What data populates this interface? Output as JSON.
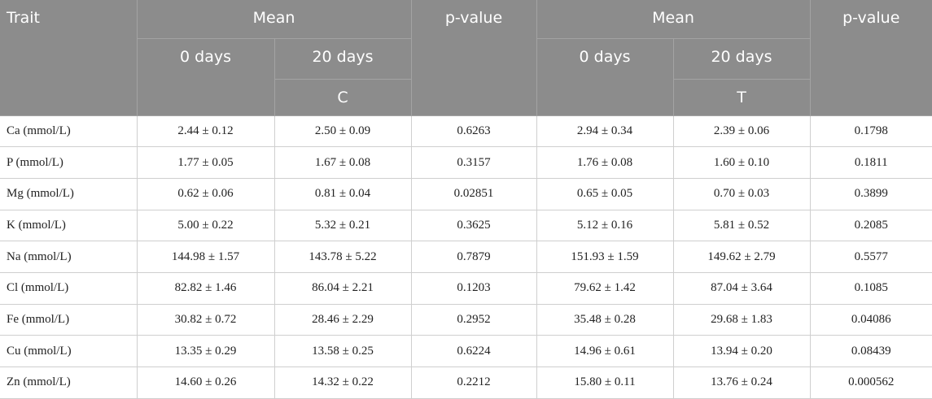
{
  "table": {
    "header": [
      "Trait",
      "Mean",
      "p-value",
      "Mean",
      "p-value"
    ],
    "subheader": [
      "0 days",
      "20 days",
      "0 days",
      "20 days"
    ],
    "groups": [
      "C",
      "T"
    ],
    "rows": [
      [
        "Ca (mmol/L)",
        "2.44 ± 0.12",
        "2.50 ± 0.09",
        "0.6263",
        "2.94 ± 0.34",
        "2.39 ± 0.06",
        "0.1798"
      ],
      [
        "P (mmol/L)",
        "1.77 ± 0.05",
        "1.67 ± 0.08",
        "0.3157",
        "1.76 ± 0.08",
        "1.60 ± 0.10",
        "0.1811"
      ],
      [
        "Mg (mmol/L)",
        "0.62 ± 0.06",
        "0.81 ± 0.04",
        "0.02851",
        "0.65 ± 0.05",
        "0.70 ± 0.03",
        "0.3899"
      ],
      [
        "K (mmol/L)",
        "5.00 ± 0.22",
        "5.32 ± 0.21",
        "0.3625",
        "5.12 ± 0.16",
        "5.81 ± 0.52",
        "0.2085"
      ],
      [
        "Na (mmol/L)",
        "144.98 ± 1.57",
        "143.78 ± 5.22",
        "0.7879",
        "151.93 ± 1.59",
        "149.62 ± 2.79",
        "0.5577"
      ],
      [
        "Cl (mmol/L)",
        "82.82 ± 1.46",
        "86.04 ± 2.21",
        "0.1203",
        "79.62 ± 1.42",
        "87.04 ± 3.64",
        "0.1085"
      ],
      [
        "Fe (mmol/L)",
        "30.82 ± 0.72",
        "28.46 ± 2.29",
        "0.2952",
        "35.48 ± 0.28",
        "29.68 ± 1.83",
        "0.04086"
      ],
      [
        "Cu (mmol/L)",
        "13.35 ± 0.29",
        "13.58 ± 0.25",
        "0.6224",
        "14.96 ± 0.61",
        "13.94 ± 0.20",
        "0.08439"
      ],
      [
        "Zn (mmol/L)",
        "14.60 ± 0.26",
        "14.32 ± 0.22",
        "0.2212",
        "15.80 ± 0.11",
        "13.76 ± 0.24",
        "0.000562"
      ]
    ]
  }
}
